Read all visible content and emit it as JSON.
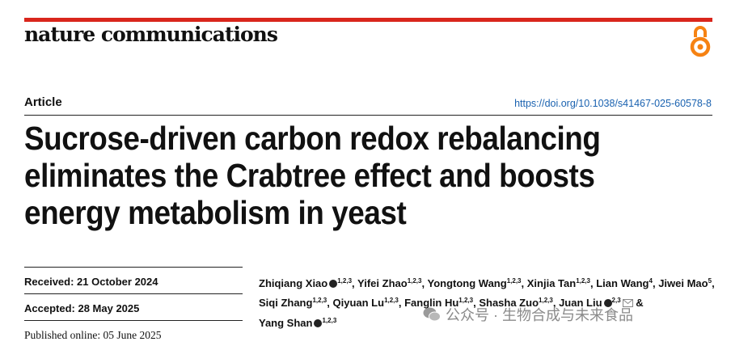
{
  "journal": "nature communications",
  "article_type": "Article",
  "doi": "https://doi.org/10.1038/s41467-025-60578-8",
  "title_lines": [
    "Sucrose-driven carbon redox rebalancing",
    "eliminates the Crabtree effect and boosts",
    "energy metabolism in yeast"
  ],
  "dates": [
    {
      "label": "Received:",
      "value": "21 October 2024"
    },
    {
      "label": "Accepted:",
      "value": "28 May 2025"
    },
    {
      "label": "Published online:",
      "value": "05 June 2025"
    }
  ],
  "authors": [
    {
      "name": "Zhiqiang Xiao",
      "orcid": true,
      "affiliations": "1,2,3",
      "separator": ","
    },
    {
      "name": "Yifei Zhao",
      "affiliations": "1,2,3",
      "separator": ","
    },
    {
      "name": "Yongtong Wang",
      "affiliations": "1,2,3",
      "separator": ","
    },
    {
      "name": "Xinjia Tan",
      "affiliations": "1,2,3",
      "separator": ","
    },
    {
      "name": "Lian Wang",
      "affiliations": "4",
      "separator": ","
    },
    {
      "name": "Jiwei Mao",
      "affiliations": "5",
      "separator": ","
    },
    {
      "name": "Siqi Zhang",
      "affiliations": "1,2,3",
      "separator": ","
    },
    {
      "name": "Qiyuan Lu",
      "affiliations": "1,2,3",
      "separator": ","
    },
    {
      "name": "Fanglin Hu",
      "affiliations": "1,2,3",
      "separator": ","
    },
    {
      "name": "Shasha Zuo",
      "affiliations": "1,2,3",
      "separator": ","
    },
    {
      "name": "Juan Liu",
      "orcid": true,
      "affiliations": "2,3",
      "corresponding": true,
      "separator": "&"
    },
    {
      "name": "Yang Shan",
      "orcid": true,
      "affiliations": "1,2,3"
    }
  ],
  "watermark": "公众号 · 生物合成与未来食品"
}
